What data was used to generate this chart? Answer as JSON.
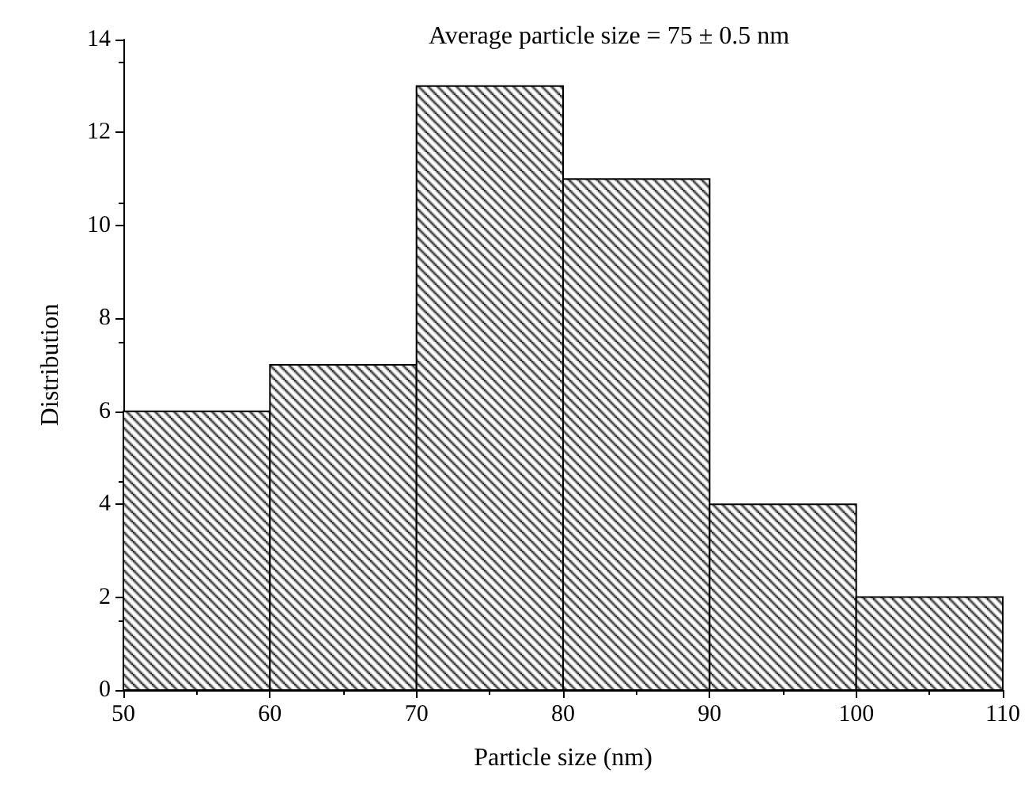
{
  "chart_data": {
    "type": "histogram",
    "title": "Average particle size = 75 ± 0.5 nm",
    "xlabel": "Particle size (nm)",
    "ylabel": "Distribution",
    "bins": [
      50,
      60,
      70,
      80,
      90,
      100,
      110
    ],
    "values": [
      6,
      7,
      13,
      11,
      4,
      2
    ],
    "color": "#000000",
    "xlim": [
      50,
      110
    ],
    "xticks": [
      50,
      60,
      70,
      80,
      90,
      100,
      110
    ],
    "ylim": [
      0,
      14
    ],
    "yticks": [
      0,
      2,
      4,
      6,
      8,
      10,
      12,
      14
    ],
    "grid": false
  }
}
